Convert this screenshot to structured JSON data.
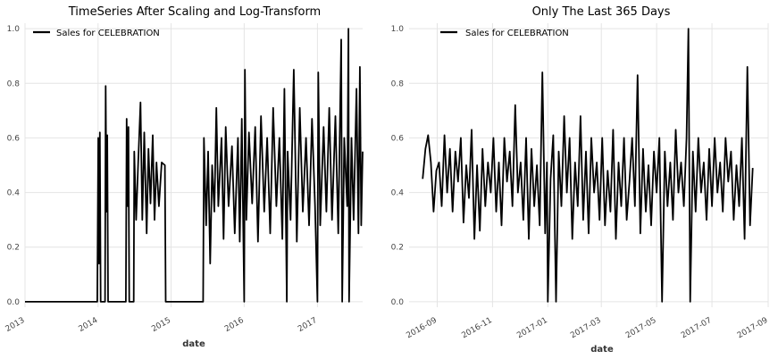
{
  "chart_data": [
    {
      "type": "line",
      "title": "TimeSeries After Scaling and Log-Transform",
      "xlabel": "date",
      "ylabel": "",
      "xlim": [
        "2013-01-01",
        "2017-08-15"
      ],
      "ylim": [
        -0.02,
        1.02
      ],
      "x_ticks": [
        "2013",
        "2014",
        "2015",
        "2016",
        "2017"
      ],
      "y_ticks": [
        "0.0",
        "0.2",
        "0.4",
        "0.6",
        "0.8",
        "1.0"
      ],
      "grid": true,
      "legend_position": "top-left",
      "series": [
        {
          "name": "Sales for CELEBRATION",
          "color": "#000000",
          "points": [
            [
              "2013-01-01",
              0.0
            ],
            [
              "2013-12-28",
              0.0
            ],
            [
              "2014-01-02",
              0.6
            ],
            [
              "2014-01-06",
              0.14
            ],
            [
              "2014-01-10",
              0.62
            ],
            [
              "2014-01-14",
              0.0
            ],
            [
              "2014-02-05",
              0.0
            ],
            [
              "2014-02-08",
              0.79
            ],
            [
              "2014-02-12",
              0.33
            ],
            [
              "2014-02-16",
              0.61
            ],
            [
              "2014-02-20",
              0.0
            ],
            [
              "2014-05-20",
              0.0
            ],
            [
              "2014-05-24",
              0.67
            ],
            [
              "2014-05-28",
              0.35
            ],
            [
              "2014-06-02",
              0.64
            ],
            [
              "2014-06-06",
              0.0
            ],
            [
              "2014-06-28",
              0.0
            ],
            [
              "2014-07-01",
              0.55
            ],
            [
              "2014-07-10",
              0.3
            ],
            [
              "2014-07-20",
              0.5
            ],
            [
              "2014-08-01",
              0.73
            ],
            [
              "2014-08-10",
              0.3
            ],
            [
              "2014-08-20",
              0.62
            ],
            [
              "2014-09-01",
              0.25
            ],
            [
              "2014-09-10",
              0.56
            ],
            [
              "2014-09-20",
              0.36
            ],
            [
              "2014-10-01",
              0.61
            ],
            [
              "2014-10-10",
              0.3
            ],
            [
              "2014-10-20",
              0.51
            ],
            [
              "2014-11-01",
              0.35
            ],
            [
              "2014-11-15",
              0.51
            ],
            [
              "2014-12-01",
              0.5
            ],
            [
              "2014-12-05",
              0.0
            ],
            [
              "2015-06-10",
              0.0
            ],
            [
              "2015-06-14",
              0.6
            ],
            [
              "2015-06-25",
              0.28
            ],
            [
              "2015-07-05",
              0.55
            ],
            [
              "2015-07-15",
              0.14
            ],
            [
              "2015-07-25",
              0.5
            ],
            [
              "2015-08-05",
              0.33
            ],
            [
              "2015-08-15",
              0.71
            ],
            [
              "2015-08-25",
              0.35
            ],
            [
              "2015-09-10",
              0.6
            ],
            [
              "2015-09-20",
              0.23
            ],
            [
              "2015-10-01",
              0.64
            ],
            [
              "2015-10-15",
              0.35
            ],
            [
              "2015-11-01",
              0.57
            ],
            [
              "2015-11-15",
              0.25
            ],
            [
              "2015-12-01",
              0.6
            ],
            [
              "2015-12-10",
              0.22
            ],
            [
              "2015-12-20",
              0.67
            ],
            [
              "2016-01-01",
              0.0
            ],
            [
              "2016-01-05",
              0.85
            ],
            [
              "2016-01-12",
              0.3
            ],
            [
              "2016-01-25",
              0.62
            ],
            [
              "2016-02-10",
              0.36
            ],
            [
              "2016-02-25",
              0.64
            ],
            [
              "2016-03-10",
              0.22
            ],
            [
              "2016-03-25",
              0.68
            ],
            [
              "2016-04-10",
              0.33
            ],
            [
              "2016-04-25",
              0.6
            ],
            [
              "2016-05-10",
              0.25
            ],
            [
              "2016-05-25",
              0.71
            ],
            [
              "2016-06-10",
              0.35
            ],
            [
              "2016-06-25",
              0.6
            ],
            [
              "2016-07-10",
              0.23
            ],
            [
              "2016-07-20",
              0.78
            ],
            [
              "2016-08-01",
              0.0
            ],
            [
              "2016-08-05",
              0.55
            ],
            [
              "2016-08-20",
              0.3
            ],
            [
              "2016-09-05",
              0.85
            ],
            [
              "2016-09-20",
              0.22
            ],
            [
              "2016-10-05",
              0.71
            ],
            [
              "2016-10-20",
              0.33
            ],
            [
              "2016-11-05",
              0.6
            ],
            [
              "2016-11-20",
              0.28
            ],
            [
              "2016-12-05",
              0.67
            ],
            [
              "2016-12-20",
              0.35
            ],
            [
              "2017-01-01",
              0.0
            ],
            [
              "2017-01-05",
              0.84
            ],
            [
              "2017-01-15",
              0.28
            ],
            [
              "2017-02-01",
              0.64
            ],
            [
              "2017-02-15",
              0.33
            ],
            [
              "2017-03-01",
              0.71
            ],
            [
              "2017-03-15",
              0.3
            ],
            [
              "2017-04-01",
              0.68
            ],
            [
              "2017-04-15",
              0.25
            ],
            [
              "2017-04-30",
              0.96
            ],
            [
              "2017-05-05",
              0.0
            ],
            [
              "2017-05-15",
              0.6
            ],
            [
              "2017-05-30",
              0.35
            ],
            [
              "2017-06-05",
              1.0
            ],
            [
              "2017-06-08",
              0.0
            ],
            [
              "2017-06-20",
              0.6
            ],
            [
              "2017-07-01",
              0.3
            ],
            [
              "2017-07-15",
              0.78
            ],
            [
              "2017-07-25",
              0.25
            ],
            [
              "2017-08-01",
              0.86
            ],
            [
              "2017-08-08",
              0.28
            ],
            [
              "2017-08-15",
              0.55
            ]
          ]
        }
      ]
    },
    {
      "type": "line",
      "title": "Only The Last 365 Days",
      "xlabel": "date",
      "ylabel": "",
      "xlim": [
        "2016-08-01",
        "2017-09-01"
      ],
      "ylim": [
        -0.02,
        1.02
      ],
      "x_ticks": [
        "2016-09",
        "2016-11",
        "2017-01",
        "2017-03",
        "2017-05",
        "2017-07",
        "2017-09"
      ],
      "y_ticks": [
        "0.0",
        "0.2",
        "0.4",
        "0.6",
        "0.8",
        "1.0"
      ],
      "grid": true,
      "legend_position": "top-left",
      "series": [
        {
          "name": "Sales for CELEBRATION",
          "color": "#000000",
          "points": [
            [
              "2016-08-16",
              0.45
            ],
            [
              "2016-08-19",
              0.56
            ],
            [
              "2016-08-22",
              0.61
            ],
            [
              "2016-08-25",
              0.51
            ],
            [
              "2016-08-28",
              0.33
            ],
            [
              "2016-08-31",
              0.48
            ],
            [
              "2016-09-03",
              0.51
            ],
            [
              "2016-09-06",
              0.35
            ],
            [
              "2016-09-09",
              0.61
            ],
            [
              "2016-09-12",
              0.4
            ],
            [
              "2016-09-15",
              0.56
            ],
            [
              "2016-09-18",
              0.33
            ],
            [
              "2016-09-21",
              0.55
            ],
            [
              "2016-09-24",
              0.44
            ],
            [
              "2016-09-27",
              0.6
            ],
            [
              "2016-09-30",
              0.29
            ],
            [
              "2016-10-03",
              0.5
            ],
            [
              "2016-10-06",
              0.38
            ],
            [
              "2016-10-09",
              0.63
            ],
            [
              "2016-10-12",
              0.23
            ],
            [
              "2016-10-15",
              0.5
            ],
            [
              "2016-10-18",
              0.26
            ],
            [
              "2016-10-21",
              0.56
            ],
            [
              "2016-10-24",
              0.35
            ],
            [
              "2016-10-27",
              0.51
            ],
            [
              "2016-10-30",
              0.4
            ],
            [
              "2016-11-02",
              0.6
            ],
            [
              "2016-11-05",
              0.33
            ],
            [
              "2016-11-08",
              0.51
            ],
            [
              "2016-11-11",
              0.28
            ],
            [
              "2016-11-14",
              0.6
            ],
            [
              "2016-11-17",
              0.44
            ],
            [
              "2016-11-20",
              0.55
            ],
            [
              "2016-11-23",
              0.35
            ],
            [
              "2016-11-26",
              0.72
            ],
            [
              "2016-11-29",
              0.4
            ],
            [
              "2016-12-02",
              0.51
            ],
            [
              "2016-12-05",
              0.3
            ],
            [
              "2016-12-08",
              0.6
            ],
            [
              "2016-12-11",
              0.23
            ],
            [
              "2016-12-14",
              0.56
            ],
            [
              "2016-12-17",
              0.35
            ],
            [
              "2016-12-20",
              0.5
            ],
            [
              "2016-12-23",
              0.28
            ],
            [
              "2016-12-26",
              0.84
            ],
            [
              "2016-12-29",
              0.25
            ],
            [
              "2016-12-31",
              0.51
            ],
            [
              "2017-01-01",
              0.0
            ],
            [
              "2017-01-04",
              0.45
            ],
            [
              "2017-01-07",
              0.61
            ],
            [
              "2017-01-10",
              0.0
            ],
            [
              "2017-01-13",
              0.55
            ],
            [
              "2017-01-16",
              0.35
            ],
            [
              "2017-01-19",
              0.68
            ],
            [
              "2017-01-22",
              0.4
            ],
            [
              "2017-01-25",
              0.6
            ],
            [
              "2017-01-28",
              0.23
            ],
            [
              "2017-01-31",
              0.51
            ],
            [
              "2017-02-03",
              0.35
            ],
            [
              "2017-02-06",
              0.68
            ],
            [
              "2017-02-09",
              0.3
            ],
            [
              "2017-02-12",
              0.55
            ],
            [
              "2017-02-15",
              0.25
            ],
            [
              "2017-02-18",
              0.6
            ],
            [
              "2017-02-21",
              0.4
            ],
            [
              "2017-02-24",
              0.51
            ],
            [
              "2017-02-27",
              0.3
            ],
            [
              "2017-03-02",
              0.6
            ],
            [
              "2017-03-05",
              0.28
            ],
            [
              "2017-03-08",
              0.48
            ],
            [
              "2017-03-11",
              0.33
            ],
            [
              "2017-03-14",
              0.63
            ],
            [
              "2017-03-17",
              0.23
            ],
            [
              "2017-03-20",
              0.51
            ],
            [
              "2017-03-23",
              0.35
            ],
            [
              "2017-03-26",
              0.6
            ],
            [
              "2017-03-29",
              0.3
            ],
            [
              "2017-04-01",
              0.44
            ],
            [
              "2017-04-04",
              0.6
            ],
            [
              "2017-04-07",
              0.35
            ],
            [
              "2017-04-10",
              0.83
            ],
            [
              "2017-04-13",
              0.25
            ],
            [
              "2017-04-16",
              0.56
            ],
            [
              "2017-04-19",
              0.33
            ],
            [
              "2017-04-22",
              0.5
            ],
            [
              "2017-04-25",
              0.28
            ],
            [
              "2017-04-28",
              0.55
            ],
            [
              "2017-05-01",
              0.4
            ],
            [
              "2017-05-04",
              0.6
            ],
            [
              "2017-05-07",
              0.0
            ],
            [
              "2017-05-10",
              0.55
            ],
            [
              "2017-05-13",
              0.35
            ],
            [
              "2017-05-16",
              0.51
            ],
            [
              "2017-05-19",
              0.3
            ],
            [
              "2017-05-22",
              0.63
            ],
            [
              "2017-05-25",
              0.4
            ],
            [
              "2017-05-28",
              0.51
            ],
            [
              "2017-05-31",
              0.35
            ],
            [
              "2017-06-03",
              0.6
            ],
            [
              "2017-06-05",
              1.0
            ],
            [
              "2017-06-07",
              0.0
            ],
            [
              "2017-06-10",
              0.55
            ],
            [
              "2017-06-13",
              0.33
            ],
            [
              "2017-06-16",
              0.6
            ],
            [
              "2017-06-19",
              0.4
            ],
            [
              "2017-06-22",
              0.51
            ],
            [
              "2017-06-25",
              0.3
            ],
            [
              "2017-06-28",
              0.56
            ],
            [
              "2017-07-01",
              0.35
            ],
            [
              "2017-07-04",
              0.6
            ],
            [
              "2017-07-07",
              0.4
            ],
            [
              "2017-07-10",
              0.51
            ],
            [
              "2017-07-13",
              0.33
            ],
            [
              "2017-07-16",
              0.6
            ],
            [
              "2017-07-19",
              0.44
            ],
            [
              "2017-07-22",
              0.55
            ],
            [
              "2017-07-25",
              0.3
            ],
            [
              "2017-07-28",
              0.5
            ],
            [
              "2017-07-31",
              0.35
            ],
            [
              "2017-08-03",
              0.6
            ],
            [
              "2017-08-06",
              0.23
            ],
            [
              "2017-08-09",
              0.86
            ],
            [
              "2017-08-12",
              0.28
            ],
            [
              "2017-08-15",
              0.49
            ]
          ]
        }
      ]
    }
  ]
}
